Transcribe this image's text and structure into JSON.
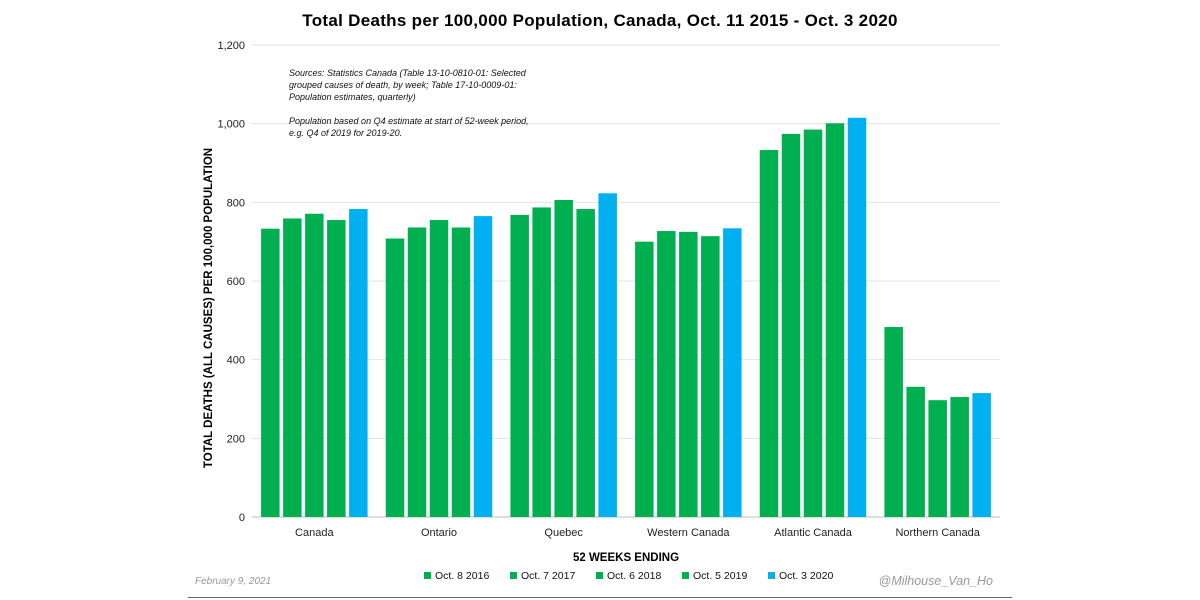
{
  "chart_data": {
    "type": "bar",
    "title": "Total Deaths per 100,000 Population, Canada, Oct. 11 2015 - Oct. 3 2020",
    "xlabel": "52 WEEKS ENDING",
    "ylabel": "TOTAL DEATHS (ALL CAUSES) PER 100,000 POPULATION",
    "ylim": [
      0,
      1200
    ],
    "yticks": [
      "0",
      "200",
      "400",
      "600",
      "800",
      "1,000",
      "1,200"
    ],
    "ytick_values": [
      0,
      200,
      400,
      600,
      800,
      1000,
      1200
    ],
    "grid": true,
    "legend_position": "bottom",
    "categories": [
      "Canada",
      "Ontario",
      "Quebec",
      "Western Canada",
      "Atlantic Canada",
      "Northern Canada"
    ],
    "series": [
      {
        "name": "Oct. 8 2016",
        "color": "#00b050",
        "values": [
          733,
          708,
          768,
          700,
          933,
          483
        ]
      },
      {
        "name": "Oct. 7 2017",
        "color": "#00b050",
        "values": [
          759,
          736,
          787,
          727,
          974,
          331
        ]
      },
      {
        "name": "Oct. 6 2018",
        "color": "#00b050",
        "values": [
          771,
          755,
          806,
          725,
          985,
          297
        ]
      },
      {
        "name": "Oct. 5 2019",
        "color": "#00b050",
        "values": [
          755,
          736,
          783,
          714,
          1001,
          305
        ]
      },
      {
        "name": "Oct. 3 2020",
        "color": "#00b0f0",
        "values": [
          783,
          765,
          823,
          734,
          1015,
          315
        ]
      }
    ],
    "annotations": [
      "Sources: Statistics Canada (Table 13-10-0810-01: Selected",
      "grouped causes of death, by week; Table 17-10-0009-01:",
      "Population estimates, quarterly)",
      "Population based on Q4 estimate at start of 52-week period,",
      "e.g. Q4 of 2019 for 2019-20."
    ]
  },
  "footer": {
    "date": "February 9, 2021",
    "handle": "@Milhouse_Van_Ho"
  }
}
